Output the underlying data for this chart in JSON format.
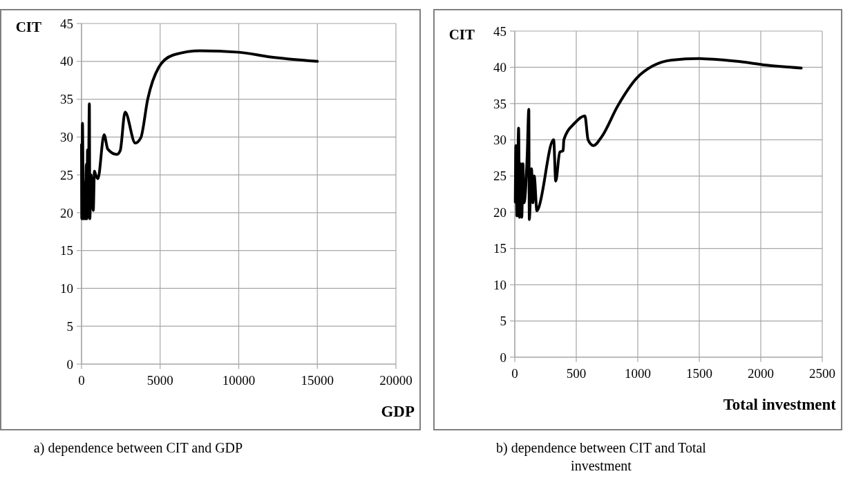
{
  "chart_data": [
    {
      "type": "line",
      "xlabel": "GDP",
      "ylabel": "CIT",
      "annotations": [
        "a) dependence between CIT and GDP"
      ],
      "grid": true,
      "xlim": [
        0,
        20000
      ],
      "ylim": [
        0,
        45
      ],
      "xticks": [
        0,
        5000,
        10000,
        15000,
        20000
      ],
      "yticks": [
        0,
        5,
        10,
        15,
        20,
        25,
        30,
        35,
        40,
        45
      ],
      "x": [
        0,
        15,
        60,
        120,
        200,
        234,
        308,
        340,
        381,
        420,
        498,
        527,
        601,
        747,
        821,
        900,
        1040,
        1436,
        1670,
        2250,
        2460,
        2770,
        3420,
        3770,
        4210,
        4910,
        5790,
        7540,
        10000,
        11930,
        15000
      ],
      "series": [
        {
          "color": "#000000",
          "values": [
            29,
            19.2,
            31.8,
            19.2,
            24,
            19.2,
            26.4,
            19.2,
            28.3,
            19.5,
            34.4,
            19.2,
            25,
            20.3,
            25.5,
            25,
            24.5,
            30.3,
            28.4,
            27.7,
            28.2,
            33.3,
            29.2,
            29.9,
            35,
            39.2,
            40.8,
            41.4,
            41.2,
            40.6,
            40
          ]
        }
      ]
    },
    {
      "type": "line",
      "xlabel": "Total investment",
      "ylabel": "CIT",
      "annotations": [
        "b) dependence between CIT and Total investment"
      ],
      "grid": true,
      "xlim": [
        0,
        2500
      ],
      "ylim": [
        0,
        45
      ],
      "xticks": [
        0,
        500,
        1000,
        1500,
        2000,
        2500
      ],
      "yticks": [
        0,
        5,
        10,
        15,
        20,
        25,
        30,
        35,
        40,
        45
      ],
      "x": [
        4,
        9,
        18,
        31,
        39,
        48,
        57,
        66,
        75,
        101,
        114,
        118,
        136,
        147,
        158,
        180,
        191,
        316,
        333,
        366,
        393,
        399,
        487,
        570,
        596,
        640,
        706,
        838,
        991,
        1123,
        1276,
        1496,
        1825,
        2044,
        2329
      ],
      "series": [
        {
          "color": "#000000",
          "values": [
            21.4,
            29.2,
            19.5,
            31.6,
            19.3,
            26.7,
            19.3,
            26.7,
            21.3,
            27.8,
            34.2,
            19,
            26,
            21.3,
            25,
            20.2,
            20.5,
            30,
            24.3,
            28.3,
            28.5,
            30,
            32.3,
            33.3,
            30,
            29.2,
            30.4,
            34.7,
            38.5,
            40.2,
            41,
            41.2,
            40.8,
            40.3,
            39.9
          ]
        }
      ]
    }
  ]
}
